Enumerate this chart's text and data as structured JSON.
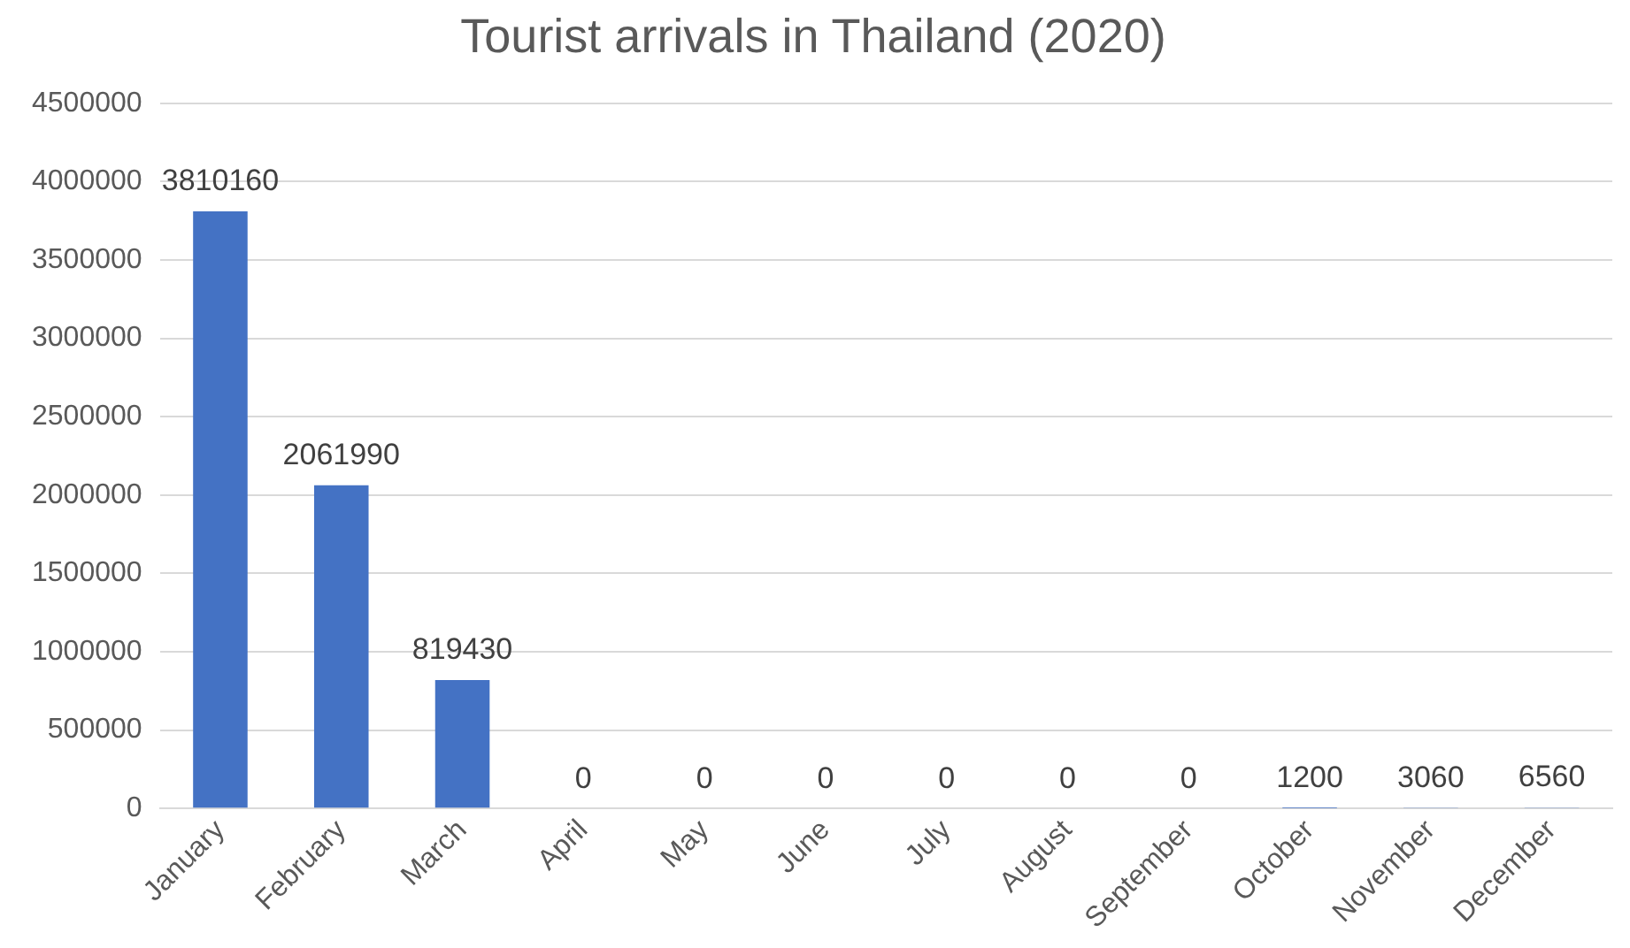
{
  "chart_data": {
    "type": "bar",
    "title": "Tourist arrivals in Thailand (2020)",
    "categories": [
      "January",
      "February",
      "March",
      "April",
      "May",
      "June",
      "July",
      "August",
      "September",
      "October",
      "November",
      "December"
    ],
    "values": [
      3810160,
      2061990,
      819430,
      0,
      0,
      0,
      0,
      0,
      0,
      1200,
      3060,
      6560
    ],
    "color": "#4472c4",
    "ylim": [
      0,
      4500000
    ],
    "yticks": [
      0,
      500000,
      1000000,
      1500000,
      2000000,
      2500000,
      3000000,
      3500000,
      4000000,
      4500000
    ],
    "grid": "y",
    "data_labels": true
  }
}
